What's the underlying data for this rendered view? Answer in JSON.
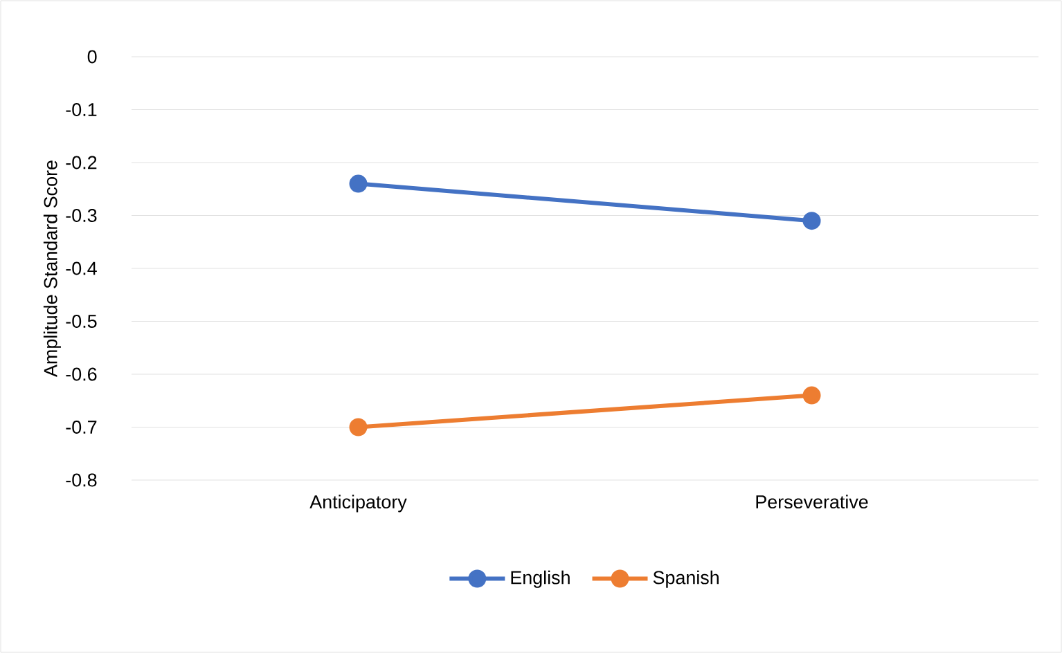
{
  "chart_data": {
    "type": "line",
    "ylabel": "Amplitude Standard Score",
    "categories": [
      "Anticipatory",
      "Perseverative"
    ],
    "series": [
      {
        "name": "English",
        "color": "#4472c4",
        "values": [
          -0.24,
          -0.31
        ]
      },
      {
        "name": "Spanish",
        "color": "#ed7d31",
        "values": [
          -0.7,
          -0.64
        ]
      }
    ],
    "ylim": [
      -0.8,
      0
    ],
    "yticks": [
      0,
      -0.1,
      -0.2,
      -0.3,
      -0.4,
      -0.5,
      -0.6,
      -0.7,
      -0.8
    ],
    "grid": "y",
    "legend": "bottom",
    "marker": "circle",
    "line_style": "solid"
  }
}
